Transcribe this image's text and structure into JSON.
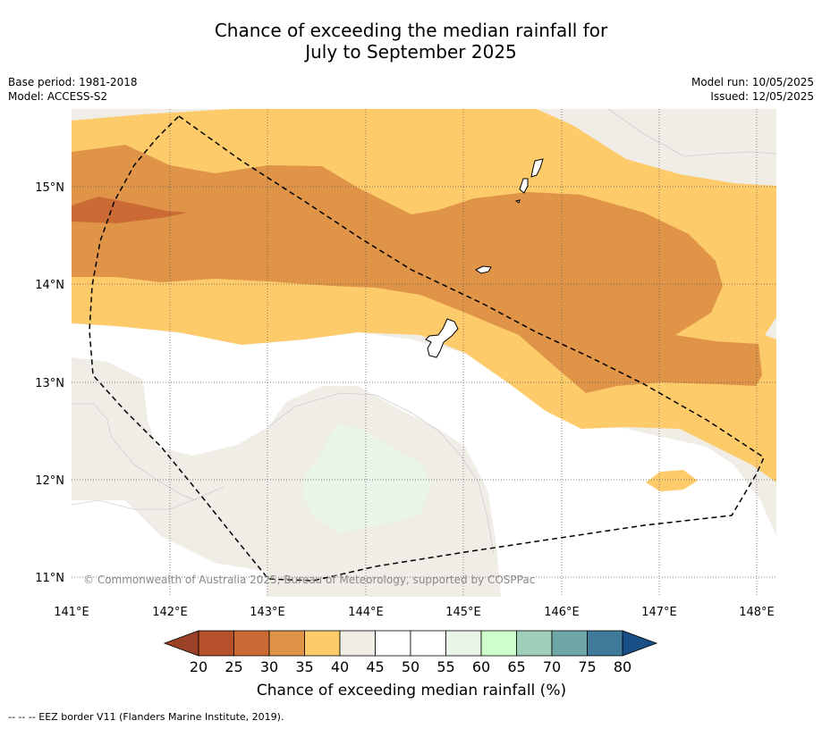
{
  "title": {
    "line1": "Chance of exceeding the median rainfall for",
    "line2": "July to September 2025"
  },
  "meta": {
    "base_period": "Base period: 1981-2018",
    "model": "Model: ACCESS-S2",
    "model_run": "Model run: 10/05/2025",
    "issued": "Issued: 12/05/2025"
  },
  "map": {
    "lat_labels": [
      "15°N",
      "14°N",
      "13°N",
      "12°N",
      "11°N"
    ],
    "lon_labels": [
      "141°E",
      "142°E",
      "143°E",
      "144°E",
      "145°E",
      "146°E",
      "147°E",
      "148°E"
    ],
    "copyright": "© Commonwealth of Australia 2025, Bureau of Meteorology, supported by COSPPac"
  },
  "legend": {
    "ticks": [
      "20",
      "25",
      "30",
      "35",
      "40",
      "45",
      "50",
      "55",
      "60",
      "65",
      "70",
      "75",
      "80"
    ],
    "colors": [
      "#b5502a",
      "#cb6a34",
      "#e09448",
      "#fdcb6a",
      "#f0ece6",
      "#ffffff",
      "#ffffff",
      "#e9f5e9",
      "#ccffcc",
      "#9ecfb8",
      "#6fa6a8",
      "#3f7a9b"
    ],
    "under_color": "#9a4128",
    "over_color": "#184f86",
    "label": "Chance of exceeding median rainfall (%)"
  },
  "footer": "-- -- -- EEZ border V11 (Flanders Marine Institute, 2019)."
}
